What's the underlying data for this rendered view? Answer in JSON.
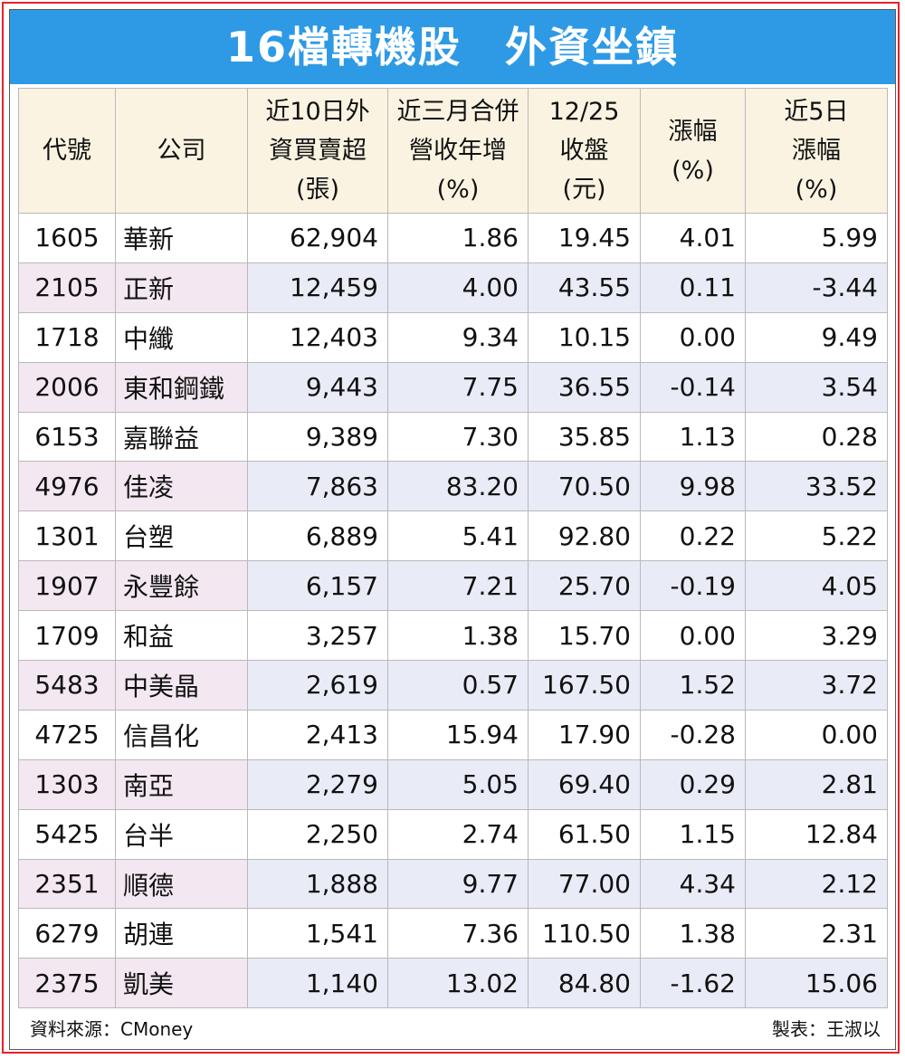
{
  "title": "16檔轉機股　外資坐鎮",
  "headers": [
    "代號",
    "公司",
    "近10日外\n資買賣超\n(張)",
    "近三月合併\n營收年增\n(%)",
    "12/25\n收盤\n(元)",
    "漲幅\n(%)",
    "近5日\n漲幅\n(%)"
  ],
  "rows": [
    [
      "1605",
      "華新",
      "62,904",
      "1.86",
      "19.45",
      "4.01",
      "5.99"
    ],
    [
      "2105",
      "正新",
      "12,459",
      "4.00",
      "43.55",
      "0.11",
      "-3.44"
    ],
    [
      "1718",
      "中纖",
      "12,403",
      "9.34",
      "10.15",
      "0.00",
      "9.49"
    ],
    [
      "2006",
      "東和鋼鐵",
      "9,443",
      "7.75",
      "36.55",
      "-0.14",
      "3.54"
    ],
    [
      "6153",
      "嘉聯益",
      "9,389",
      "7.30",
      "35.85",
      "1.13",
      "0.28"
    ],
    [
      "4976",
      "佳凌",
      "7,863",
      "83.20",
      "70.50",
      "9.98",
      "33.52"
    ],
    [
      "1301",
      "台塑",
      "6,889",
      "5.41",
      "92.80",
      "0.22",
      "5.22"
    ],
    [
      "1907",
      "永豐餘",
      "6,157",
      "7.21",
      "25.70",
      "-0.19",
      "4.05"
    ],
    [
      "1709",
      "和益",
      "3,257",
      "1.38",
      "15.70",
      "0.00",
      "3.29"
    ],
    [
      "5483",
      "中美晶",
      "2,619",
      "0.57",
      "167.50",
      "1.52",
      "3.72"
    ],
    [
      "4725",
      "信昌化",
      "2,413",
      "15.94",
      "17.90",
      "-0.28",
      "0.00"
    ],
    [
      "1303",
      "南亞",
      "2,279",
      "5.05",
      "69.40",
      "0.29",
      "2.81"
    ],
    [
      "5425",
      "台半",
      "2,250",
      "2.74",
      "61.50",
      "1.15",
      "12.84"
    ],
    [
      "2351",
      "順德",
      "1,888",
      "9.77",
      "77.00",
      "4.34",
      "2.12"
    ],
    [
      "6279",
      "胡連",
      "1,541",
      "7.36",
      "110.50",
      "1.38",
      "2.31"
    ],
    [
      "2375",
      "凱美",
      "1,140",
      "13.02",
      "84.80",
      "-1.62",
      "15.06"
    ]
  ],
  "source": "資料來源：CMoney",
  "credit": "製表：王淑以"
}
